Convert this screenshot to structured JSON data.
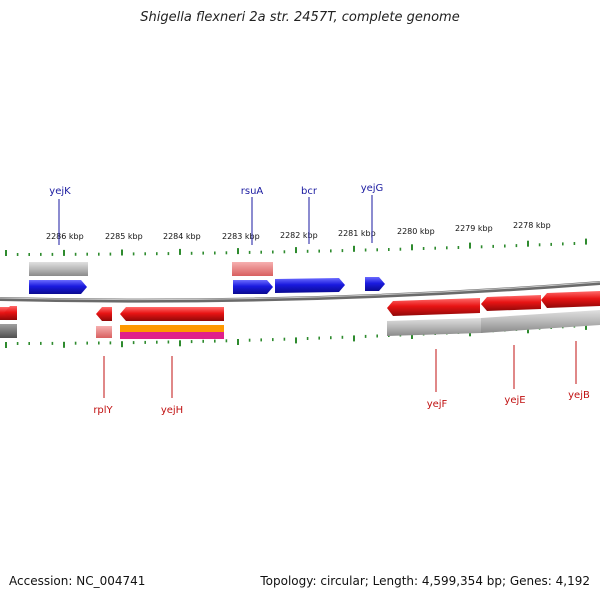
{
  "title": "Shigella flexneri 2a str. 2457T, complete genome",
  "footer": {
    "accession": "Accession: NC_004741",
    "summary": "Topology: circular; Length: 4,599,354 bp; Genes: 4,192"
  },
  "colors": {
    "forward_gene": "#1a1adf",
    "reverse_gene": "#e81414",
    "backbone": "#8a8a8a",
    "ticks": "#2e8b2e",
    "forward_label": "#1a1aa0",
    "reverse_label": "#c01010",
    "feature_gray": "#b8b8b8",
    "feature_pink": "#e88080",
    "feature_orange": "#ff9900",
    "feature_magenta": "#e0208a"
  },
  "scale_labels": [
    "2286 kbp",
    "2285 kbp",
    "2284 kbp",
    "2283 kbp",
    "2282 kbp",
    "2281 kbp",
    "2280 kbp",
    "2279 kbp",
    "2278 kbp"
  ],
  "forward_genes": [
    "yejK",
    "rsuA",
    "bcr",
    "yejG"
  ],
  "reverse_genes": [
    "rplY",
    "yejH",
    "yejF",
    "yejE",
    "yejB"
  ]
}
